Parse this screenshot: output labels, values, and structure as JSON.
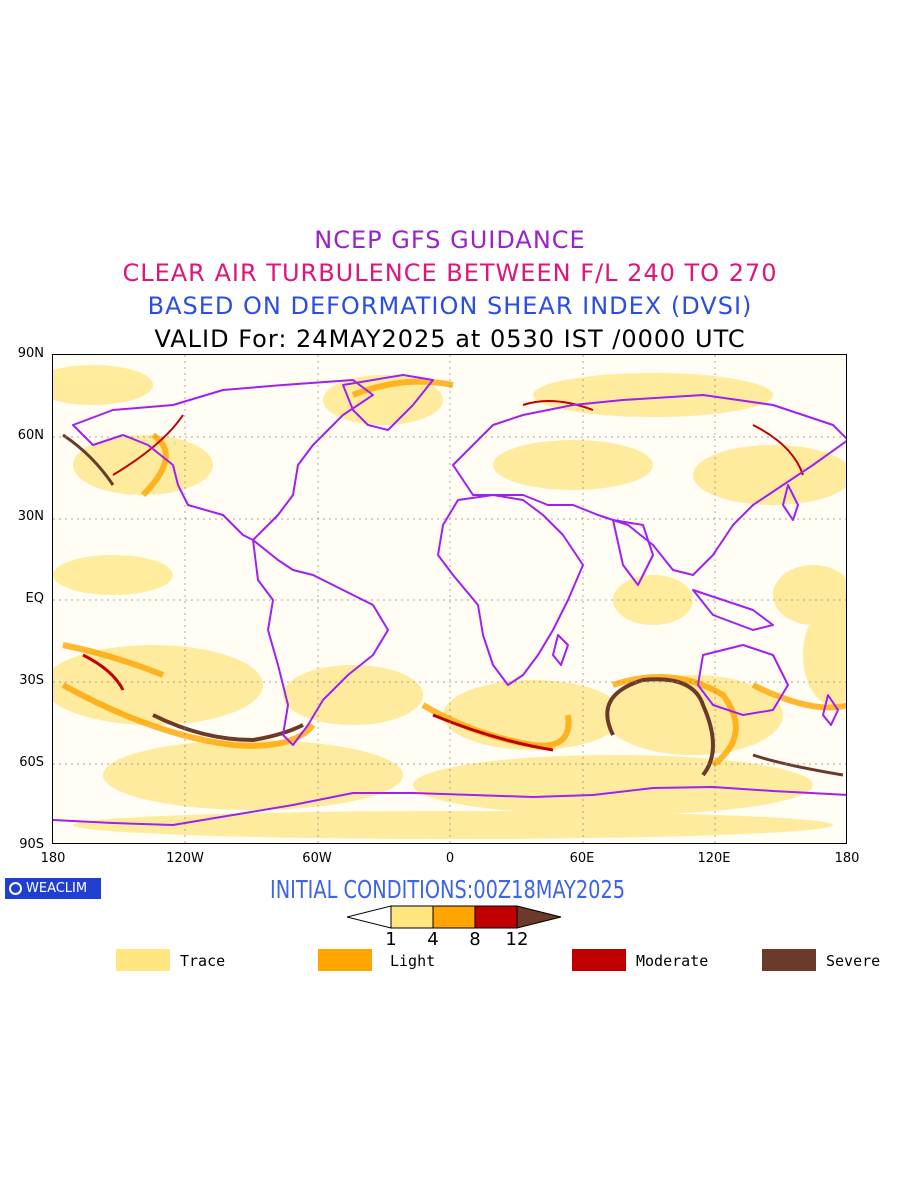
{
  "titles": {
    "line1": "NCEP GFS GUIDANCE",
    "line2": "CLEAR AIR TURBULENCE BETWEEN F/L 240 TO 270",
    "line3": "BASED ON DEFORMATION SHEAR INDEX (DVSI)",
    "line4": "VALID For: 24MAY2025 at 0530 IST /0000 UTC"
  },
  "axes": {
    "lat_labels": [
      "90N",
      "60N",
      "30N",
      "EQ",
      "30S",
      "60S",
      "90S"
    ],
    "lon_labels": [
      "180",
      "120W",
      "60W",
      "0",
      "60E",
      "120E",
      "180"
    ]
  },
  "initial_conditions": "INITIAL CONDITIONS:00Z18MAY2025",
  "logo_text": "WEACLIM",
  "colorbar": {
    "ticks": [
      "1",
      "4",
      "8",
      "12"
    ],
    "colors": [
      "#ffe680",
      "#ffa500",
      "#c00000",
      "#6b3a2a"
    ]
  },
  "legend": [
    {
      "label": "Trace",
      "color": "#ffe680"
    },
    {
      "label": "Light",
      "color": "#ffa500"
    },
    {
      "label": "Moderate",
      "color": "#c00000"
    },
    {
      "label": "Severe",
      "color": "#6b3a2a"
    }
  ],
  "colors": {
    "coastline": "#a020f0",
    "trace": "#ffe680",
    "light": "#ffa500",
    "moderate": "#c00000",
    "severe": "#6b3a2a"
  }
}
